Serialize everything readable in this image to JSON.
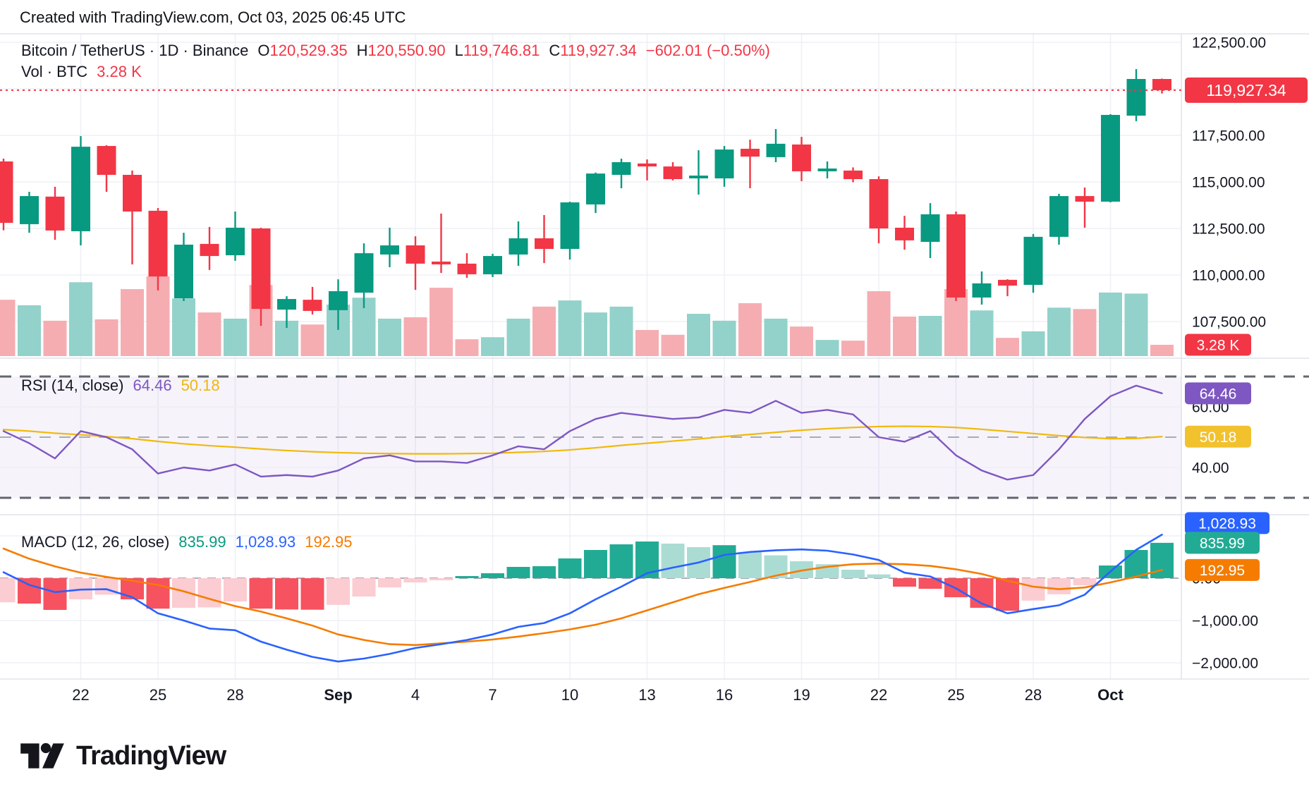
{
  "header": {
    "credit": "Created with TradingView.com, Oct 03, 2025 06:45 UTC"
  },
  "legend": {
    "title": "Bitcoin / TetherUS · 1D · Binance",
    "o_label": "O",
    "o": "120,529.35",
    "h_label": "H",
    "h": "120,550.90",
    "l_label": "L",
    "l": "119,746.81",
    "c_label": "C",
    "c": "119,927.34",
    "change": "−602.01 (−0.50%)",
    "vol_label": "Vol · BTC",
    "vol_value": "3.28 K"
  },
  "rsi_legend": {
    "title": "RSI (14, close)",
    "value": "64.46",
    "ma_value": "50.18"
  },
  "macd_legend": {
    "title": "MACD (12, 26, close)",
    "hist_value": "835.99",
    "line_value": "1,028.93",
    "signal_value": "192.95"
  },
  "axes": {
    "price_ticks": [
      {
        "label": "122,500.00",
        "value": 122500
      },
      {
        "label": "120,000.00",
        "value": 120000
      },
      {
        "label": "117,500.00",
        "value": 117500
      },
      {
        "label": "115,000.00",
        "value": 115000
      },
      {
        "label": "112,500.00",
        "value": 112500
      },
      {
        "label": "110,000.00",
        "value": 110000
      },
      {
        "label": "107,500.00",
        "value": 107500
      }
    ],
    "price_badge": {
      "label": "119,927.34",
      "value": 119927.34,
      "color": "#f23645"
    },
    "volume_badge": {
      "label": "3.28 K",
      "color": "#f23645"
    },
    "rsi_ticks": [
      {
        "label": "60.00",
        "value": 60
      },
      {
        "label": "40.00",
        "value": 40
      }
    ],
    "rsi_badges": [
      {
        "label": "64.46",
        "value": 64.46,
        "color": "#7e57c2"
      },
      {
        "label": "50.18",
        "value": 50.18,
        "color": "#f2c12e"
      }
    ],
    "macd_ticks": [
      {
        "label": "0.00",
        "value": 0
      },
      {
        "label": "−1,000.00",
        "value": -1000
      },
      {
        "label": "−2,000.00",
        "value": -2000
      }
    ],
    "macd_badges": [
      {
        "label": "1,028.93",
        "value": 1028.93,
        "color": "#2962ff"
      },
      {
        "label": "835.99",
        "value": 835.99,
        "color": "#22ab94"
      },
      {
        "label": "192.95",
        "value": 192.95,
        "color": "#f57c00"
      }
    ],
    "x_labels": [
      {
        "text": "22",
        "index": 3,
        "bold": false
      },
      {
        "text": "25",
        "index": 6,
        "bold": false
      },
      {
        "text": "28",
        "index": 9,
        "bold": false
      },
      {
        "text": "Sep",
        "index": 13,
        "bold": true
      },
      {
        "text": "4",
        "index": 16,
        "bold": false
      },
      {
        "text": "7",
        "index": 19,
        "bold": false
      },
      {
        "text": "10",
        "index": 22,
        "bold": false
      },
      {
        "text": "13",
        "index": 25,
        "bold": false
      },
      {
        "text": "16",
        "index": 28,
        "bold": false
      },
      {
        "text": "19",
        "index": 31,
        "bold": false
      },
      {
        "text": "22",
        "index": 34,
        "bold": false
      },
      {
        "text": "25",
        "index": 37,
        "bold": false
      },
      {
        "text": "28",
        "index": 40,
        "bold": false
      },
      {
        "text": "Oct",
        "index": 43,
        "bold": true
      }
    ]
  },
  "palette": {
    "up": "#089981",
    "down": "#f23645",
    "vol_up": "#92d2ca",
    "vol_down": "#f5adb2",
    "rsi_line": "#7e57c2",
    "rsi_ma": "#f0b90b",
    "rsi_band_fill": "#7e57c2",
    "macd_line": "#2962ff",
    "macd_signal": "#f57c00",
    "hist_up_dark": "#22ab94",
    "hist_up_light": "#abdcd4",
    "hist_down_dark": "#f7525f",
    "hist_down_light": "#fbccd1",
    "grid": "#eef0f5",
    "separator": "#e0e3eb",
    "axis_text": "#131722",
    "dashed_dark": "#62666f",
    "dashed_light": "#a9acb6",
    "price_line": "#f23645"
  },
  "logo": {
    "brand": "TradingView"
  },
  "chart_data": [
    {
      "type": "candlestick",
      "title": "Bitcoin / TetherUS · 1D · Binance",
      "ylim": [
        106800,
        123300
      ],
      "yticks": [
        122500,
        120000,
        117500,
        115000,
        112500,
        110000,
        107500
      ],
      "last_price": 119927.34,
      "x": [
        "Aug 19",
        "Aug 20",
        "Aug 21",
        "Aug 22",
        "Aug 23",
        "Aug 24",
        "Aug 25",
        "Aug 26",
        "Aug 27",
        "Aug 28",
        "Aug 29",
        "Aug 30",
        "Aug 31",
        "Sep 1",
        "Sep 2",
        "Sep 3",
        "Sep 4",
        "Sep 5",
        "Sep 6",
        "Sep 7",
        "Sep 8",
        "Sep 9",
        "Sep 10",
        "Sep 11",
        "Sep 12",
        "Sep 13",
        "Sep 14",
        "Sep 15",
        "Sep 16",
        "Sep 17",
        "Sep 18",
        "Sep 19",
        "Sep 20",
        "Sep 21",
        "Sep 22",
        "Sep 23",
        "Sep 24",
        "Sep 25",
        "Sep 26",
        "Sep 27",
        "Sep 28",
        "Sep 29",
        "Sep 30",
        "Oct 1",
        "Oct 2",
        "Oct 3"
      ],
      "open": [
        116100,
        112730,
        114210,
        112350,
        116930,
        115380,
        113450,
        108750,
        111670,
        111060,
        112500,
        108140,
        108670,
        108110,
        109050,
        111100,
        111590,
        110720,
        110610,
        110040,
        111100,
        111970,
        111400,
        113790,
        115380,
        115990,
        115830,
        115190,
        115190,
        116780,
        116330,
        117010,
        115570,
        115610,
        115150,
        112540,
        111780,
        113260,
        108790,
        109740,
        109470,
        112050,
        114240,
        113940,
        118560,
        120529.35
      ],
      "high": [
        116250,
        114470,
        114740,
        117460,
        116970,
        115610,
        113600,
        112270,
        112580,
        113410,
        112540,
        108860,
        109360,
        109770,
        111700,
        112540,
        112080,
        113300,
        111170,
        111140,
        112880,
        113220,
        113940,
        115500,
        116250,
        116210,
        116060,
        116700,
        116930,
        117270,
        117840,
        117420,
        116100,
        115780,
        115300,
        113180,
        113860,
        113410,
        110190,
        109770,
        112200,
        114360,
        114700,
        118640,
        121060,
        120550.9
      ],
      "low": [
        112400,
        112270,
        111890,
        111590,
        114470,
        110570,
        109170,
        108600,
        110270,
        110760,
        107270,
        107160,
        107880,
        107050,
        108220,
        110420,
        109200,
        110110,
        109850,
        109890,
        110490,
        110640,
        110830,
        113330,
        114660,
        115080,
        115080,
        114320,
        114740,
        114660,
        116060,
        115040,
        115190,
        114980,
        111700,
        111360,
        110910,
        108600,
        108410,
        108860,
        109050,
        111630,
        112540,
        113900,
        118260,
        119746.81
      ],
      "close": [
        112800,
        114240,
        112390,
        116890,
        115380,
        113410,
        109920,
        111630,
        111020,
        112540,
        108180,
        108710,
        108070,
        109130,
        111170,
        111590,
        110610,
        110570,
        110040,
        111020,
        111970,
        111400,
        113900,
        115450,
        116060,
        115830,
        115150,
        115340,
        116740,
        116360,
        117050,
        115570,
        115720,
        115150,
        112500,
        111860,
        113260,
        108790,
        109550,
        109430,
        112050,
        114240,
        113940,
        118600,
        120530,
        119927.34
      ]
    },
    {
      "type": "bar",
      "name": "Volume BTC (thousands)",
      "last_label": "3.28 K",
      "values": [
        16.4,
        14.8,
        10.3,
        21.5,
        10.7,
        19.5,
        23.2,
        16.8,
        12.7,
        10.9,
        20.7,
        10.3,
        9.2,
        15.0,
        17.0,
        10.9,
        11.3,
        19.9,
        4.9,
        5.5,
        10.9,
        14.4,
        16.2,
        12.7,
        14.4,
        7.6,
        6.2,
        12.3,
        10.3,
        15.4,
        10.9,
        8.6,
        4.7,
        4.5,
        18.9,
        11.5,
        11.7,
        19.5,
        13.3,
        5.3,
        7.2,
        14.1,
        13.7,
        18.5,
        18.2,
        3.28
      ]
    },
    {
      "type": "line",
      "name": "RSI (14, close)",
      "guides": [
        70,
        50,
        30
      ],
      "yticks": [
        60,
        40
      ],
      "series": [
        {
          "name": "RSI",
          "last": 64.46,
          "values": [
            52,
            48,
            43,
            52,
            50,
            46,
            38,
            40,
            39,
            41,
            37,
            37.5,
            37,
            39,
            43,
            44,
            42,
            42,
            41.5,
            44,
            47,
            46,
            52,
            56,
            58,
            57,
            56,
            56.5,
            59,
            58,
            62,
            58,
            59,
            57.5,
            50,
            48.5,
            52,
            44,
            39,
            36,
            37.5,
            46,
            56,
            63.5,
            67,
            64.46
          ]
        },
        {
          "name": "RSI-based MA",
          "last": 50.18,
          "values": [
            52.5,
            52,
            51.3,
            50.8,
            50.2,
            49.5,
            48.6,
            47.8,
            47.2,
            46.7,
            46.1,
            45.6,
            45.2,
            44.9,
            44.7,
            44.6,
            44.5,
            44.5,
            44.6,
            44.7,
            45,
            45.3,
            45.8,
            46.5,
            47.3,
            48,
            48.7,
            49.4,
            50.2,
            50.9,
            51.6,
            52.3,
            52.8,
            53.2,
            53.5,
            53.6,
            53.5,
            53.2,
            52.6,
            51.9,
            51.2,
            50.5,
            49.9,
            49.5,
            49.6,
            50.18
          ]
        }
      ]
    },
    {
      "type": "bar+line",
      "name": "MACD (12, 26, close)",
      "yticks": [
        0,
        -1000,
        -2000
      ],
      "histogram": [
        -570,
        -600,
        -750,
        -500,
        -390,
        -500,
        -720,
        -700,
        -690,
        -550,
        -720,
        -740,
        -745,
        -630,
        -433,
        -217,
        -100,
        -50,
        50,
        117,
        267,
        283,
        467,
        667,
        800,
        867,
        817,
        733,
        780,
        620,
        540,
        400,
        330,
        200,
        90,
        -200,
        -250,
        -450,
        -700,
        -770,
        -530,
        -380,
        -170,
        300,
        667,
        835.99
      ],
      "series": [
        {
          "name": "MACD line",
          "last": 1028.93,
          "values": [
            140,
            -160,
            -330,
            -270,
            -260,
            -450,
            -830,
            -1000,
            -1190,
            -1230,
            -1500,
            -1690,
            -1860,
            -1970,
            -1900,
            -1790,
            -1650,
            -1560,
            -1460,
            -1330,
            -1150,
            -1060,
            -830,
            -500,
            -200,
            120,
            250,
            370,
            550,
            620,
            660,
            680,
            650,
            560,
            430,
            130,
            40,
            -240,
            -600,
            -830,
            -730,
            -640,
            -390,
            160,
            670,
            1028.93
          ]
        },
        {
          "name": "Signal line",
          "last": 192.95,
          "values": [
            700,
            460,
            280,
            130,
            30,
            -60,
            -160,
            -310,
            -490,
            -660,
            -790,
            -950,
            -1120,
            -1330,
            -1460,
            -1560,
            -1580,
            -1540,
            -1500,
            -1450,
            -1380,
            -1300,
            -1210,
            -1100,
            -950,
            -760,
            -570,
            -380,
            -230,
            -90,
            60,
            180,
            270,
            330,
            345,
            330,
            290,
            210,
            100,
            -60,
            -200,
            -260,
            -220,
            -100,
            40,
            192.95
          ]
        }
      ]
    }
  ]
}
